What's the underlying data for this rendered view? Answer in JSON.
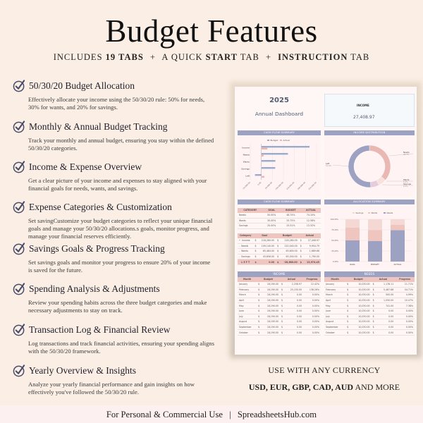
{
  "header": {
    "title": "Budget Features",
    "subtitle": {
      "p1": "INCLUDES ",
      "p1_bold": "19 TABS",
      "sep1": "+",
      "p2": "A QUICK ",
      "p2_bold": "START",
      "p2_end": " TAB",
      "sep2": "+",
      "p3_bold": "INSTRUCTION",
      "p3_end": " TAB"
    }
  },
  "features": [
    {
      "title": "50/30/20 Budget Allocation",
      "desc": "Effectively allocate your income using the 50/30/20 rule: 50% for needs, 30% for wants, and 20% for savings."
    },
    {
      "title": "Monthly & Annual Budget Tracking",
      "desc": "Track your monthly and annual budget, ensuring you stay within the defined 50/30/20 categories."
    },
    {
      "title": "Income & Expense Overview",
      "desc": "Get a clear picture of your income and expenses to stay aligned with your financial goals for needs, wants, and savings."
    },
    {
      "title": "Expense Categories & Customization",
      "desc": "Set savingCustomize your budget categories to reflect your unique financial goals and manage your 50/30/20 allocations.s goals, monitor progress, and manage your financial reserves efficiently."
    },
    {
      "title": "Savings Goals & Progress Tracking",
      "desc": "Set savings goals and monitor your progress to ensure 20% of your income is saved for the future."
    },
    {
      "title": "Spending Analysis & Adjustments",
      "desc": "Review your spending habits across the three budget categories and make necessary adjustments to stay on track."
    },
    {
      "title": "Transaction Log & Financial Review",
      "desc": "Log transactions and track financial activities, ensuring your spending aligns with the 50/30/20 framework."
    },
    {
      "title": "Yearly Overview & Insights",
      "desc": "Analyze your yearly financial performance and gain insights on how effectively you've followed the 50/30/20 rule."
    }
  ],
  "dashboard": {
    "year": "2025",
    "name": "Annual Dashboard",
    "income_label": "INCOME",
    "income_value": "27,408.97",
    "colors": {
      "primary": "#9ea2c2",
      "accent": "#efc5c0",
      "budget": "#9aaccd",
      "actual": "#f0b4ae",
      "needs": "#9ea2c2",
      "wants": "#efc5c0",
      "savings": "#f3d8d3"
    },
    "cashflow_chart": {
      "header": "CASH FLOW SUMMARY",
      "legend": [
        "Budget",
        "Actual"
      ],
      "categories": [
        "Income",
        "Needs",
        "Wants",
        "Savings",
        "Left"
      ],
      "x_ticks": [
        "-50,000.00",
        "0.00",
        "50,000.00",
        "100,000.00",
        "150,000.00",
        "200,000.00",
        "250,000.00"
      ]
    },
    "income_distribution": {
      "header": "INCOME DISTRIBUTION",
      "labels": [
        {
          "name": "Needs",
          "pct": "36.3%"
        },
        {
          "name": "Wants",
          "pct": "6.2%"
        },
        {
          "name": "Savings",
          "pct": "6.5%"
        },
        {
          "name": "Left",
          "pct": "51.0%"
        }
      ]
    },
    "cashflow_summary": {
      "header": "CASH FLOW SUMMARY",
      "pct_table": {
        "columns": [
          "CATEGORY",
          "GOAL",
          "BUDGET",
          "ACTUAL"
        ],
        "rows": [
          [
            "Needs",
            "50.00%",
            "48.74%",
            "74.10%"
          ],
          [
            "Wants",
            "30.00%",
            "25.75%",
            "12.58%"
          ],
          [
            "Savings",
            "20.00%",
            "25.51%",
            "13.32%"
          ]
        ]
      },
      "amount_table": {
        "columns": [
          "Category",
          "Goal",
          "Budget",
          "Actual"
        ],
        "rows": [
          {
            "bullet": "•",
            "cat": "Income",
            "goal": "218,280.00",
            "budget": "218,280.00",
            "actual": "27,408.97"
          },
          {
            "bullet": "-",
            "cat": "Needs",
            "goal": "109,140.00",
            "budget": "120,540.00",
            "actual": "9,954.79"
          },
          {
            "bullet": "-",
            "cat": "Wants",
            "goal": "65,484.00",
            "budget": "63,600.00",
            "actual": "1,689.68"
          },
          {
            "bullet": "-",
            "cat": "Savings",
            "goal": "43,656.00",
            "budget": "63,000.00",
            "actual": "1,790.00"
          }
        ],
        "left_row": {
          "cat": "L E F T",
          "goal": "0.00",
          "budget": "-28,680.00",
          "actual": "13,974.49"
        },
        "currency": "$"
      }
    },
    "allocation_summary": {
      "header": "ALLOCATION SUMMARY",
      "legend": [
        "Savings",
        "Wants",
        "Needs"
      ],
      "y_ticks": [
        "100.00%",
        "75.00%",
        "50.00%",
        "25.00%",
        "0.00%"
      ],
      "categories": [
        "GOAL",
        "BUDGET",
        "ACTUAL"
      ]
    },
    "income_table": {
      "header": "INCOME",
      "columns": [
        "Month",
        "Budget",
        "Actual",
        "Progress"
      ],
      "currency": "$",
      "rows": [
        [
          "January",
          "18,190.00",
          "2,258.97",
          "12.42%"
        ],
        [
          "February",
          "18,190.00",
          "25,150.00",
          "138.26%"
        ],
        [
          "March",
          "18,190.00",
          "0.00",
          "0.00%"
        ],
        [
          "April",
          "18,190.00",
          "0.00",
          "0.00%"
        ],
        [
          "May",
          "18,190.00",
          "0.00",
          "0.00%"
        ],
        [
          "June",
          "18,190.00",
          "0.00",
          "0.00%"
        ],
        [
          "July",
          "18,190.00",
          "0.00",
          "0.00%"
        ],
        [
          "August",
          "18,190.00",
          "0.00",
          "0.00%"
        ],
        [
          "September",
          "18,190.00",
          "0.00",
          "0.00%"
        ],
        [
          "October",
          "18,190.00",
          "0.00",
          "0.00%"
        ]
      ]
    },
    "needs_table": {
      "header": "NEEDS",
      "columns": [
        "Month",
        "Budget",
        "Actual",
        "Progress"
      ],
      "currency": "$",
      "rows": [
        [
          "January",
          "10,030.00",
          "1,176.11",
          "11.71%"
        ],
        [
          "February",
          "10,030.00",
          "5,487.68",
          "54.71%"
        ],
        [
          "March",
          "10,030.00",
          "500.00",
          "4.99%"
        ],
        [
          "April",
          "10,030.00",
          "1,050.00",
          "10.47%"
        ],
        [
          "May",
          "10,030.00",
          "741.00",
          "7.38%"
        ],
        [
          "June",
          "10,030.00",
          "0.00",
          "0.00%"
        ],
        [
          "July",
          "10,030.00",
          "0.00",
          "0.00%"
        ],
        [
          "August",
          "10,030.00",
          "0.00",
          "0.00%"
        ],
        [
          "September",
          "10,030.00",
          "0.00",
          "0.00%"
        ],
        [
          "October",
          "10,030.00",
          "0.00",
          "0.00%"
        ]
      ]
    }
  },
  "chart_data": [
    {
      "type": "bar",
      "orientation": "horizontal",
      "title": "CASH FLOW SUMMARY",
      "categories": [
        "Income",
        "Needs",
        "Wants",
        "Savings",
        "Left"
      ],
      "series": [
        {
          "name": "Budget",
          "values": [
            218280,
            120540,
            63600,
            63000,
            -28680
          ]
        },
        {
          "name": "Actual",
          "values": [
            27409,
            9955,
            1690,
            1790,
            13974
          ]
        }
      ],
      "xlim": [
        -50000,
        250000
      ],
      "legend_position": "top"
    },
    {
      "type": "pie",
      "donut": true,
      "title": "INCOME DISTRIBUTION",
      "categories": [
        "Needs",
        "Wants",
        "Savings",
        "Left"
      ],
      "values": [
        36.3,
        6.2,
        6.5,
        51.0
      ]
    },
    {
      "type": "bar",
      "stacked": true,
      "title": "ALLOCATION SUMMARY",
      "categories": [
        "GOAL",
        "BUDGET",
        "ACTUAL"
      ],
      "series": [
        {
          "name": "Needs",
          "values": [
            50.0,
            48.74,
            74.1
          ]
        },
        {
          "name": "Wants",
          "values": [
            30.0,
            25.75,
            12.58
          ]
        },
        {
          "name": "Savings",
          "values": [
            20.0,
            25.51,
            13.32
          ]
        }
      ],
      "ylim": [
        0,
        100
      ],
      "legend_position": "top"
    }
  ],
  "currency_note": {
    "line1": "USE WITH ANY CURRENCY",
    "bold": "USD, EUR, GBP, CAD, AUD",
    "rest": " AND MORE"
  },
  "footer": {
    "left": "For Personal & Commercial Use",
    "sep": "|",
    "right": "SpreadsheetsHub.com"
  }
}
